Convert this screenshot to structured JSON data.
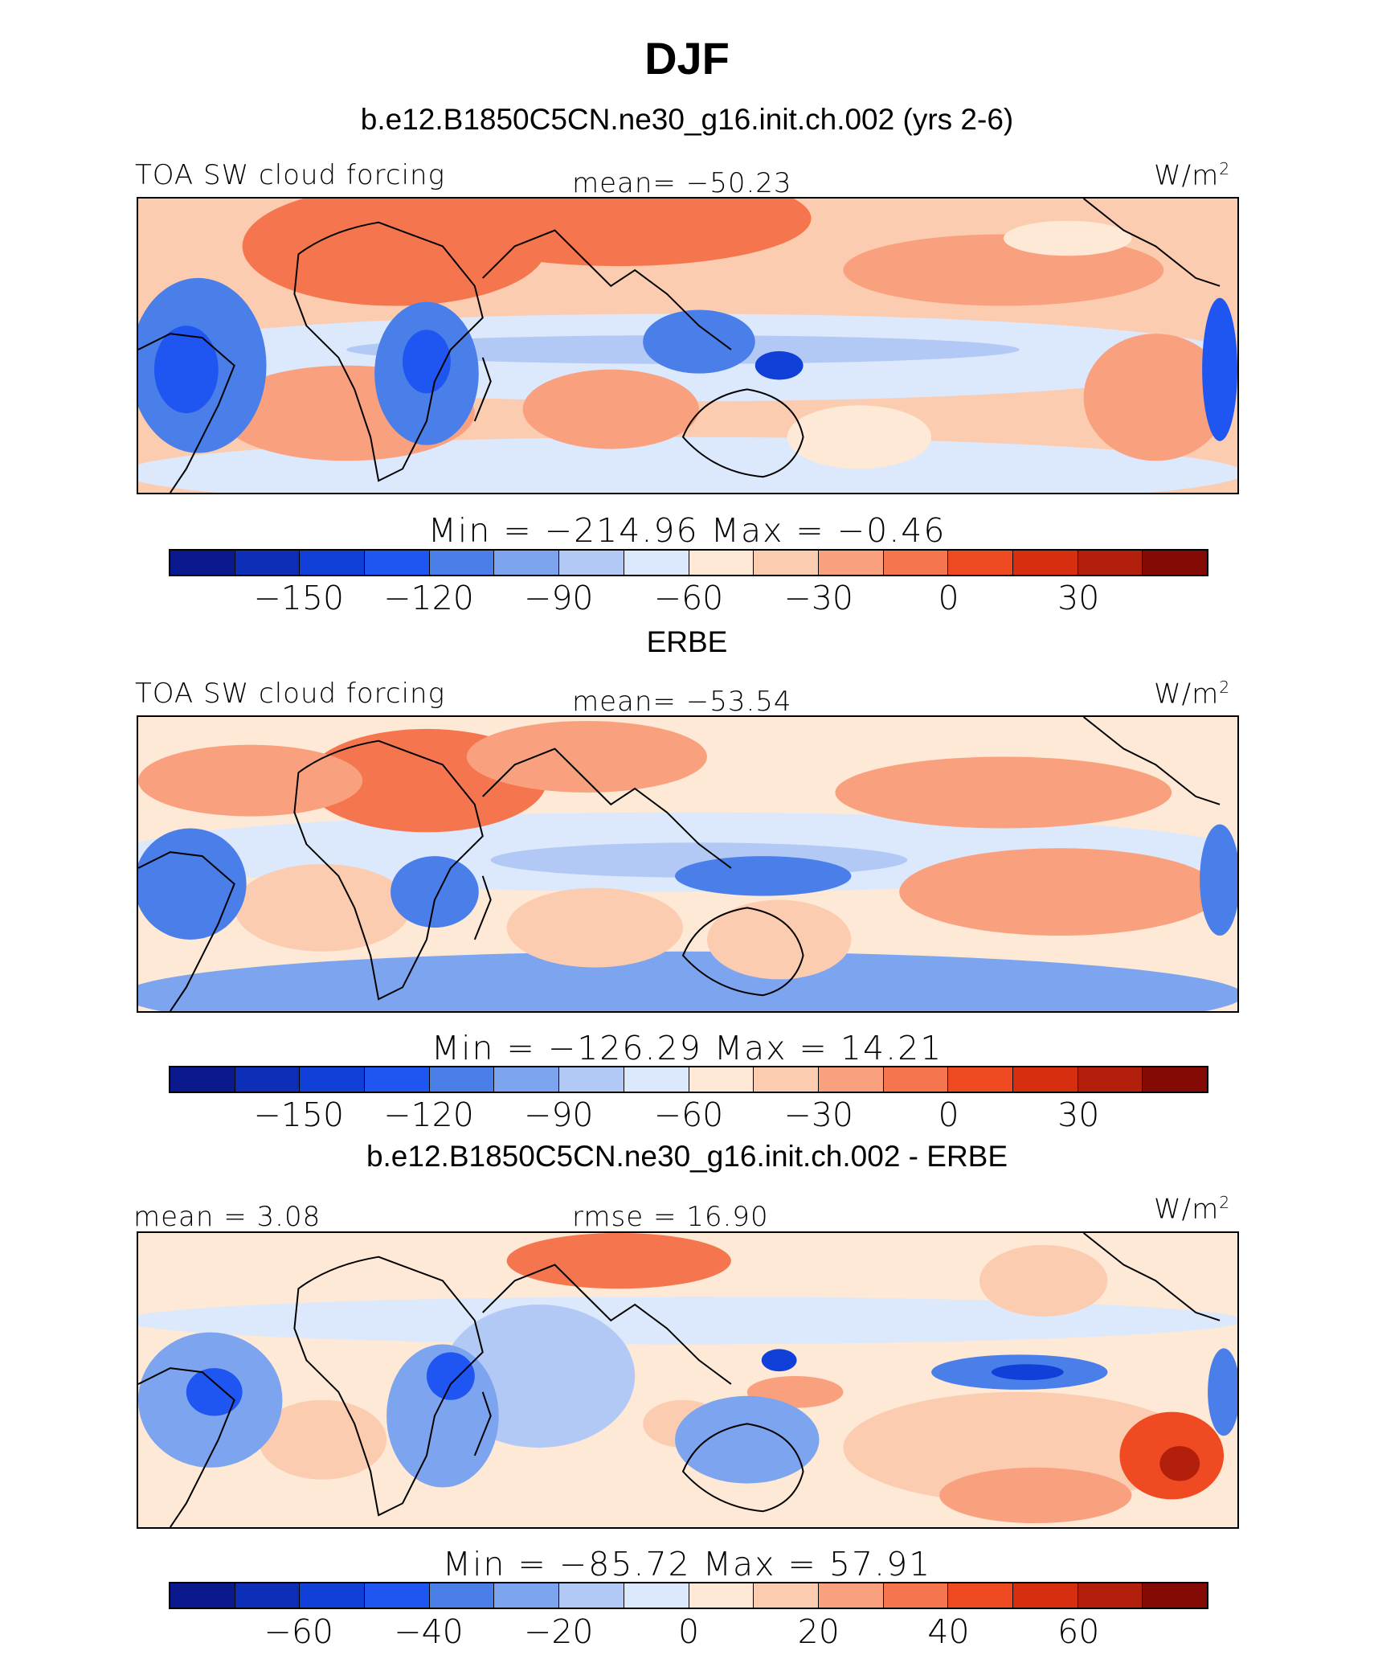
{
  "figure": {
    "title": "DJF",
    "units_label": "W/m",
    "units_sup": "2",
    "colors": [
      "#0a1a8c",
      "#0d2fb8",
      "#1040d8",
      "#1f55f0",
      "#4a7ee8",
      "#7da4ee",
      "#b1c9f4",
      "#dce8fb",
      "#fde9d6",
      "#fcccb0",
      "#f9a17f",
      "#f5764e",
      "#ef4a22",
      "#d82e10",
      "#b2200b",
      "#840a06"
    ]
  },
  "panels": [
    {
      "heading": "b.e12.B1850C5CN.ne30_g16.init.ch.002 (yrs 2-6)",
      "left_label": "TOA SW cloud forcing",
      "mid_label": "mean= −50.23",
      "min_text": "Min  =  −214.96",
      "max_text": "Max  =   −0.46",
      "ticks": [
        "−150",
        "−120",
        "−90",
        "−60",
        "−30",
        "0",
        "30"
      ]
    },
    {
      "heading": "ERBE",
      "left_label": "TOA SW cloud forcing",
      "mid_label": "mean= −53.54",
      "min_text": "Min  =  −126.29",
      "max_text": "Max  =   14.21",
      "ticks": [
        "−150",
        "−120",
        "−90",
        "−60",
        "−30",
        "0",
        "30"
      ]
    },
    {
      "heading": "b.e12.B1850C5CN.ne30_g16.init.ch.002 - ERBE",
      "left_label": "mean  =    3.08",
      "mid_label": "rmse  =   16.90",
      "min_text": "Min  =  −85.72",
      "max_text": "Max  =   57.91",
      "ticks": [
        "−60",
        "−40",
        "−20",
        "0",
        "20",
        "40",
        "60"
      ]
    }
  ]
}
